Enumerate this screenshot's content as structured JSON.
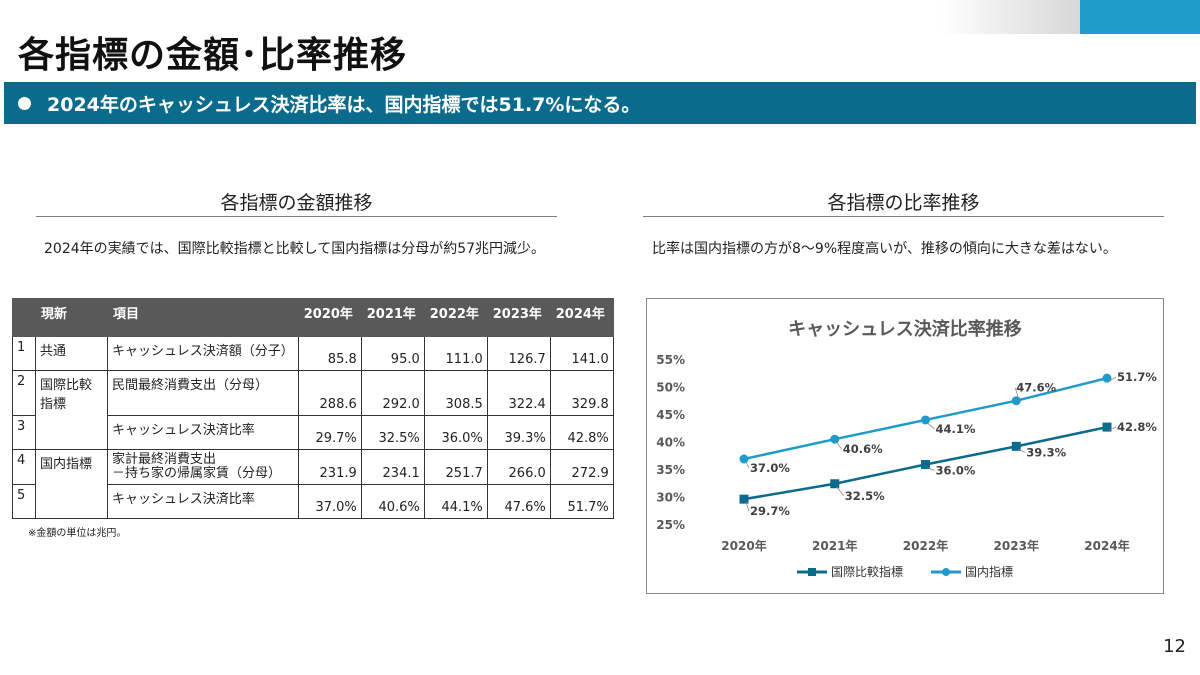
{
  "header": {
    "title": "各指標の金額･比率推移",
    "banner": "2024年のキャッシュレス決済比率は、国内指標では51.7%になる。",
    "accent_color": "#1f9bc9",
    "banner_color": "#0b6b8c"
  },
  "left": {
    "heading": "各指標の金額推移",
    "description": "2024年の実績では、国際比較指標と比較して国内指標は分母が約57兆円減少。",
    "footnote": "※金額の単位は兆円。",
    "table": {
      "headers": [
        "",
        "現新",
        "項目",
        "2020年",
        "2021年",
        "2022年",
        "2023年",
        "2024年"
      ],
      "rows": [
        {
          "no": "1",
          "category": "共通",
          "item": "キャッシュレス決済額（分子）",
          "values": [
            "85.8",
            "95.0",
            "111.0",
            "126.7",
            "141.0"
          ]
        },
        {
          "no": "2",
          "category": "国際比較指標",
          "item": "民間最終消費支出（分母）",
          "values": [
            "288.6",
            "292.0",
            "308.5",
            "322.4",
            "329.8"
          ]
        },
        {
          "no": "3",
          "category": "",
          "item": "キャッシュレス決済比率",
          "values": [
            "29.7%",
            "32.5%",
            "36.0%",
            "39.3%",
            "42.8%"
          ]
        },
        {
          "no": "4",
          "category": "国内指標",
          "item": "家計最終消費支出\n－持ち家の帰属家賃（分母）",
          "values": [
            "231.9",
            "234.1",
            "251.7",
            "266.0",
            "272.9"
          ]
        },
        {
          "no": "5",
          "category": "",
          "item": "キャッシュレス決済比率",
          "values": [
            "37.0%",
            "40.6%",
            "44.1%",
            "47.6%",
            "51.7%"
          ]
        }
      ]
    }
  },
  "right": {
    "heading": "各指標の比率推移",
    "description": "比率は国内指標の方が8～9%程度高いが、推移の傾向に大きな差はない。"
  },
  "chart_data": {
    "type": "line",
    "title": "キャッシュレス決済比率推移",
    "xlabel": "",
    "ylabel": "",
    "categories": [
      "2020年",
      "2021年",
      "2022年",
      "2023年",
      "2024年"
    ],
    "ylim": [
      25,
      55
    ],
    "yticks": [
      "25%",
      "30%",
      "35%",
      "40%",
      "45%",
      "50%",
      "55%"
    ],
    "ytick_values": [
      25,
      30,
      35,
      40,
      45,
      50,
      55
    ],
    "grid": false,
    "legend_position": "bottom",
    "series": [
      {
        "name": "国際比較指標",
        "values": [
          29.7,
          32.5,
          36.0,
          39.3,
          42.8
        ],
        "labels": [
          "29.7%",
          "32.5%",
          "36.0%",
          "39.3%",
          "42.8%"
        ],
        "color": "#0b6b8c",
        "marker": "square"
      },
      {
        "name": "国内指標",
        "values": [
          37.0,
          40.6,
          44.1,
          47.6,
          51.7
        ],
        "labels": [
          "37.0%",
          "40.6%",
          "44.1%",
          "47.6%",
          "51.7%"
        ],
        "color": "#1f9bc9",
        "marker": "circle"
      }
    ]
  },
  "page_number": "12"
}
